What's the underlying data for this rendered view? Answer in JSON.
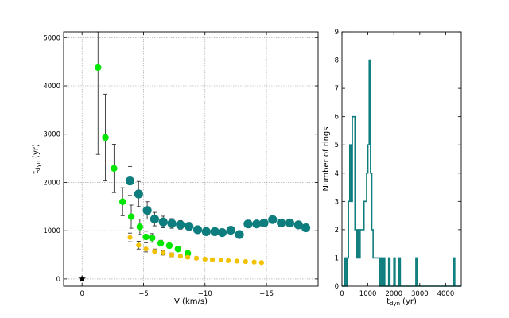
{
  "chart_data": [
    {
      "type": "scatter",
      "title": "",
      "xlabel": "V (km/s)",
      "ylabel_text": "t",
      "ylabel_sub": "dyn",
      "ylabel_unit": "(yr)",
      "xlim": [
        1.5,
        -19.2
      ],
      "ylim": [
        -150,
        5120
      ],
      "xticks": [
        0,
        -5,
        -10,
        -15
      ],
      "xtick_labels": [
        "0",
        "−5",
        "−10",
        "−15"
      ],
      "yticks": [
        0,
        1000,
        2000,
        3000,
        4000,
        5000
      ],
      "ytick_labels": [
        "0",
        "1000",
        "2000",
        "3000",
        "4000",
        "5000"
      ],
      "grid": true,
      "series": [
        {
          "name": "green",
          "color": "#00e600",
          "marker": "circle",
          "x": [
            -1.3,
            -1.9,
            -2.6,
            -3.3,
            -4.0,
            -4.7,
            -5.2,
            -5.7,
            -6.4,
            -7.1,
            -7.8,
            -8.6
          ],
          "y": [
            4380,
            2930,
            2290,
            1600,
            1290,
            1080,
            870,
            850,
            740,
            690,
            620,
            530
          ],
          "yerr": [
            1800,
            900,
            500,
            290,
            240,
            160,
            120,
            90,
            60,
            50,
            40,
            30
          ]
        },
        {
          "name": "teal",
          "color": "#0e7d7d",
          "marker": "circle-large",
          "x": [
            -3.9,
            -4.6,
            -5.3,
            -5.9,
            -6.6,
            -7.3,
            -8.0,
            -8.7,
            -9.4,
            -10.1,
            -10.8,
            -11.4,
            -12.1,
            -12.8,
            -13.5,
            -14.2,
            -14.8,
            -15.5,
            -16.2,
            -16.9,
            -17.6,
            -18.2
          ],
          "y": [
            2030,
            1760,
            1420,
            1240,
            1180,
            1150,
            1120,
            1090,
            1020,
            980,
            980,
            960,
            1010,
            920,
            1140,
            1140,
            1160,
            1230,
            1160,
            1160,
            1120,
            1060
          ],
          "yerr": [
            300,
            260,
            180,
            140,
            120,
            100,
            90,
            80,
            70,
            65,
            60,
            55,
            55,
            50,
            50,
            50,
            50,
            50,
            50,
            50,
            45,
            45
          ]
        },
        {
          "name": "yellow",
          "color": "#f2c200",
          "marker": "circle-small",
          "x": [
            -3.9,
            -4.6,
            -5.2,
            -5.9,
            -6.6,
            -7.3,
            -8.0,
            -8.6,
            -9.3,
            -10.0,
            -10.6,
            -11.3,
            -11.9,
            -12.6,
            -13.3,
            -14.0,
            -14.6
          ],
          "y": [
            860,
            700,
            620,
            570,
            540,
            500,
            470,
            450,
            430,
            410,
            400,
            390,
            380,
            370,
            360,
            350,
            340
          ],
          "yerr": [
            90,
            80,
            60,
            50,
            45,
            40,
            35,
            30,
            30,
            28,
            26,
            24,
            22,
            20,
            20,
            20,
            20
          ]
        },
        {
          "name": "star",
          "color": "#000000",
          "marker": "star",
          "x": [
            0.0
          ],
          "y": [
            0
          ]
        }
      ]
    },
    {
      "type": "histogram",
      "title": "",
      "xlabel_text": "t",
      "xlabel_sub": "dyn",
      "xlabel_unit": "(yr)",
      "ylabel": "Number of rings",
      "xlim": [
        0,
        4600
      ],
      "ylim": [
        0,
        9
      ],
      "xticks": [
        0,
        1000,
        2000,
        3000,
        4000
      ],
      "xtick_labels": [
        "0",
        "1000",
        "2000",
        "3000",
        "4000"
      ],
      "yticks": [
        0,
        1,
        2,
        3,
        4,
        5,
        6,
        7,
        8,
        9
      ],
      "ytick_labels": [
        "0",
        "1",
        "2",
        "3",
        "4",
        "5",
        "6",
        "7",
        "8",
        "9"
      ],
      "color": "#0e7d7d",
      "bin_width": 50,
      "bins": [
        {
          "start": 100,
          "count": 1
        },
        {
          "start": 200,
          "count": 1
        },
        {
          "start": 250,
          "count": 3
        },
        {
          "start": 300,
          "count": 5
        },
        {
          "start": 350,
          "count": 3
        },
        {
          "start": 400,
          "count": 6
        },
        {
          "start": 450,
          "count": 6
        },
        {
          "start": 500,
          "count": 2
        },
        {
          "start": 550,
          "count": 1
        },
        {
          "start": 600,
          "count": 2
        },
        {
          "start": 650,
          "count": 1
        },
        {
          "start": 700,
          "count": 2
        },
        {
          "start": 750,
          "count": 2
        },
        {
          "start": 800,
          "count": 2
        },
        {
          "start": 850,
          "count": 3
        },
        {
          "start": 900,
          "count": 3
        },
        {
          "start": 950,
          "count": 4
        },
        {
          "start": 1000,
          "count": 5
        },
        {
          "start": 1050,
          "count": 8
        },
        {
          "start": 1100,
          "count": 4
        },
        {
          "start": 1150,
          "count": 2
        },
        {
          "start": 1200,
          "count": 1
        },
        {
          "start": 1250,
          "count": 1
        },
        {
          "start": 1300,
          "count": 1
        },
        {
          "start": 1350,
          "count": 1
        },
        {
          "start": 1400,
          "count": 1
        },
        {
          "start": 1500,
          "count": 1
        },
        {
          "start": 1600,
          "count": 1
        },
        {
          "start": 1800,
          "count": 1
        },
        {
          "start": 2000,
          "count": 1
        },
        {
          "start": 2200,
          "count": 1
        },
        {
          "start": 2850,
          "count": 1
        },
        {
          "start": 4300,
          "count": 1
        }
      ]
    }
  ]
}
